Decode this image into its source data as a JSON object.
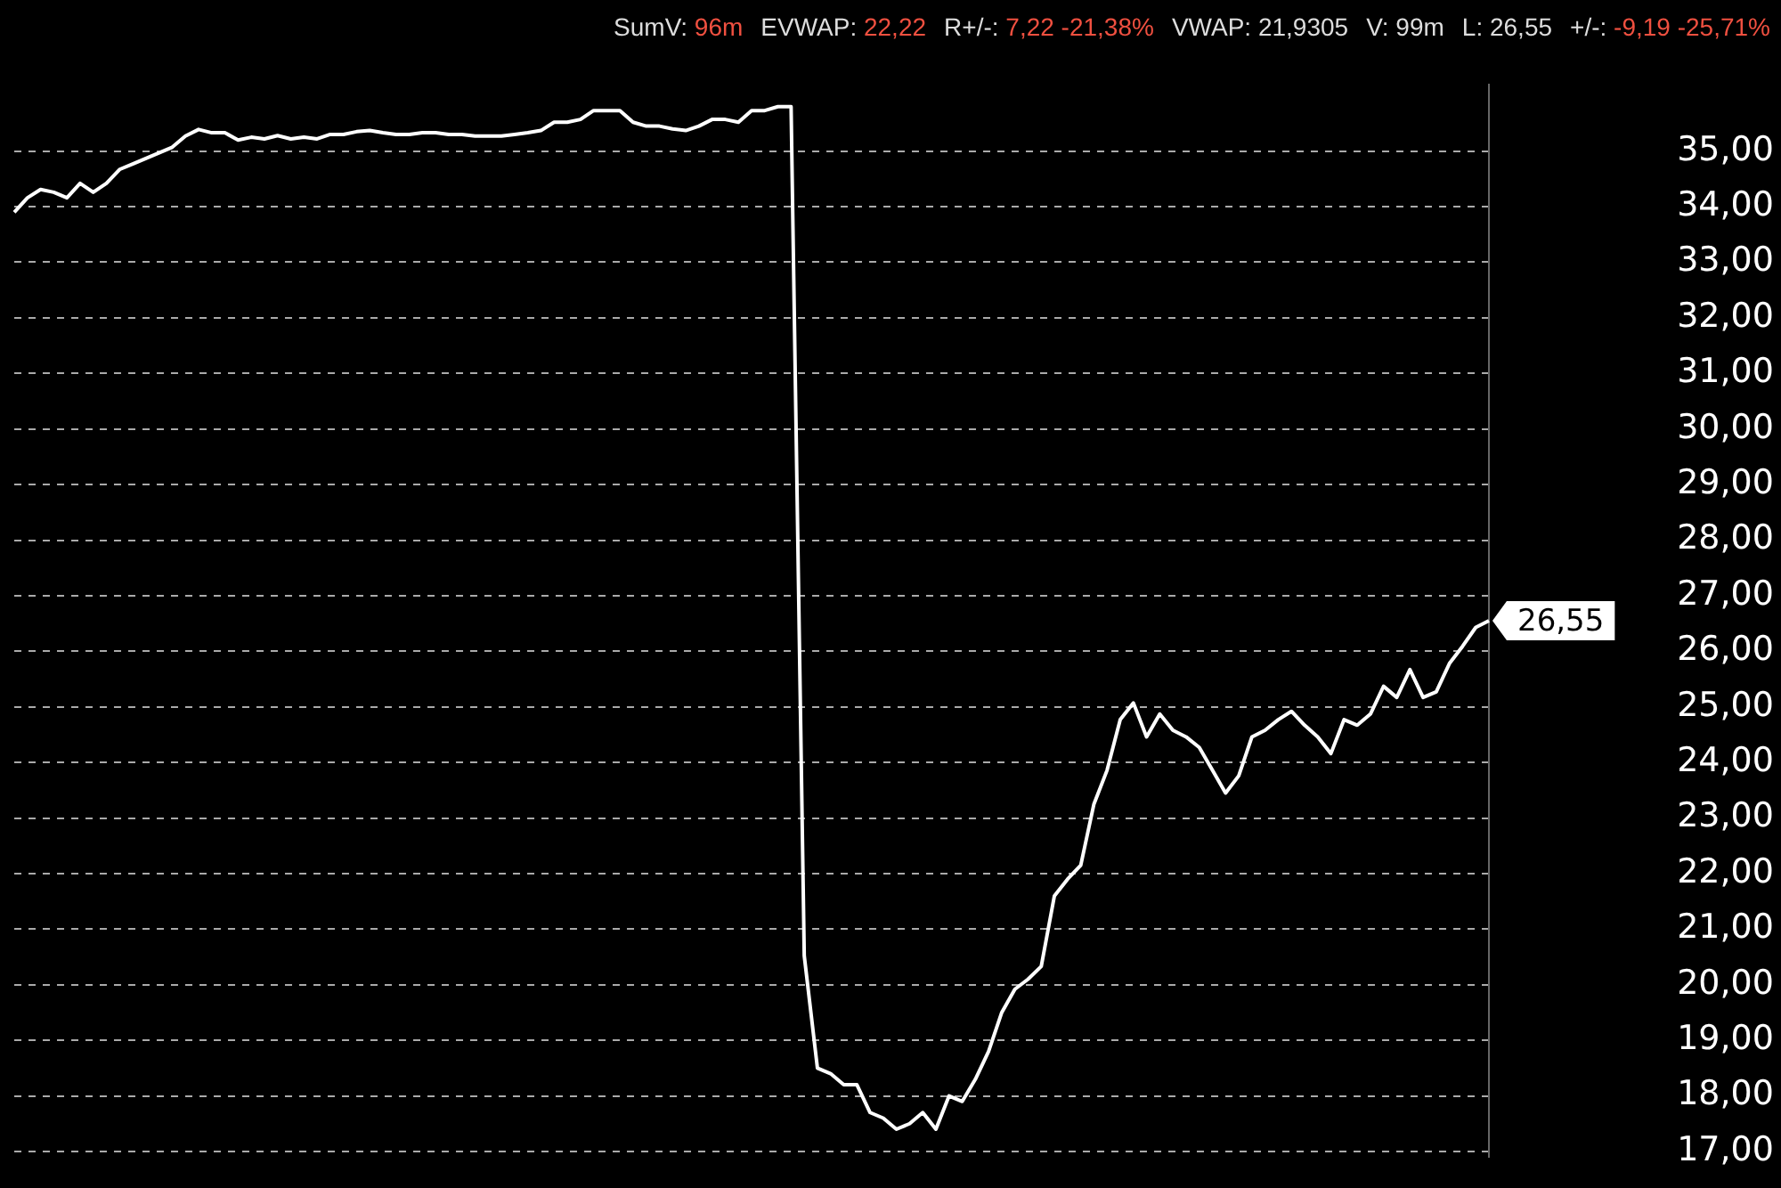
{
  "chart_data": {
    "type": "line",
    "categories": [
      null,
      null,
      null,
      null,
      null,
      null,
      null,
      null,
      null,
      null,
      null,
      null,
      null,
      null,
      null,
      null,
      null,
      null,
      null,
      null,
      null,
      null,
      null,
      null,
      null,
      null,
      null,
      null,
      null,
      null,
      null,
      null,
      null,
      null,
      null,
      null,
      null,
      null,
      null,
      null,
      null,
      null,
      null,
      null,
      null,
      null,
      null,
      null,
      null,
      null,
      null,
      null,
      null,
      null,
      null,
      null,
      null,
      null,
      null,
      null,
      null,
      null,
      null,
      null,
      null,
      null,
      null,
      null,
      null,
      null,
      null,
      null,
      null,
      null,
      null,
      null,
      null,
      null,
      null,
      null,
      null,
      null,
      null,
      null,
      null,
      null,
      null,
      null,
      null,
      null,
      null,
      null,
      null,
      null,
      null,
      null,
      null,
      null,
      null,
      null,
      null,
      null,
      null,
      null,
      null,
      null,
      null,
      null,
      null,
      null,
      null,
      null,
      null
    ],
    "series": [
      {
        "color": "#ffffff",
        "values": [
          33.9,
          34.16,
          34.31,
          34.26,
          34.16,
          34.42,
          34.26,
          34.42,
          34.67,
          34.77,
          34.87,
          34.97,
          35.07,
          35.27,
          35.39,
          35.33,
          35.33,
          35.2,
          35.25,
          35.22,
          35.28,
          35.22,
          35.25,
          35.22,
          35.3,
          35.3,
          35.35,
          35.37,
          35.33,
          35.3,
          35.3,
          35.33,
          35.33,
          35.3,
          35.3,
          35.27,
          35.27,
          35.27,
          35.3,
          35.33,
          35.37,
          35.52,
          35.52,
          35.57,
          35.73,
          35.73,
          35.73,
          35.52,
          35.45,
          35.45,
          35.4,
          35.37,
          35.45,
          35.57,
          35.57,
          35.52,
          35.73,
          35.73,
          35.8,
          35.8,
          20.52,
          18.5,
          18.4,
          18.2,
          18.2,
          17.7,
          17.6,
          17.4,
          17.5,
          17.7,
          17.4,
          18.0,
          17.9,
          18.3,
          18.8,
          19.5,
          19.92,
          20.1,
          20.33,
          21.6,
          21.9,
          22.15,
          23.25,
          23.86,
          24.77,
          25.07,
          24.46,
          24.87,
          24.58,
          24.46,
          24.27,
          23.86,
          23.45,
          23.76,
          24.46,
          24.58,
          24.77,
          24.92,
          24.67,
          24.46,
          24.16,
          24.77,
          24.67,
          24.87,
          25.37,
          25.17,
          25.67,
          25.17,
          25.27,
          25.78,
          26.09,
          26.43,
          26.55
        ]
      }
    ],
    "ylim": [
      16.9,
      36.2
    ],
    "yticks": [
      {
        "value": 17,
        "label": "17,00"
      },
      {
        "value": 18,
        "label": "18,00"
      },
      {
        "value": 19,
        "label": "19,00"
      },
      {
        "value": 20,
        "label": "20,00"
      },
      {
        "value": 21,
        "label": "21,00"
      },
      {
        "value": 22,
        "label": "22,00"
      },
      {
        "value": 23,
        "label": "23,00"
      },
      {
        "value": 24,
        "label": "24,00"
      },
      {
        "value": 25,
        "label": "25,00"
      },
      {
        "value": 26,
        "label": "26,00"
      },
      {
        "value": 27,
        "label": "27,00"
      },
      {
        "value": 28,
        "label": "28,00"
      },
      {
        "value": 29,
        "label": "29,00"
      },
      {
        "value": 30,
        "label": "30,00"
      },
      {
        "value": 31,
        "label": "31,00"
      },
      {
        "value": 32,
        "label": "32,00"
      },
      {
        "value": 33,
        "label": "33,00"
      },
      {
        "value": 34,
        "label": "34,00"
      },
      {
        "value": 35,
        "label": "35,00"
      }
    ],
    "grid": "y",
    "line_style": "solid",
    "marker": "none",
    "legend": false,
    "tick_labels": "y",
    "annotations": [
      "SumV: 96m",
      "EVWAP: 22,22",
      "R+/-: 7,22 -21,38%",
      "VWAP: 21,9305",
      "V: 99m",
      "L: 26,55",
      "+/-: -9,19 -25,71%",
      "26,55"
    ]
  }
}
